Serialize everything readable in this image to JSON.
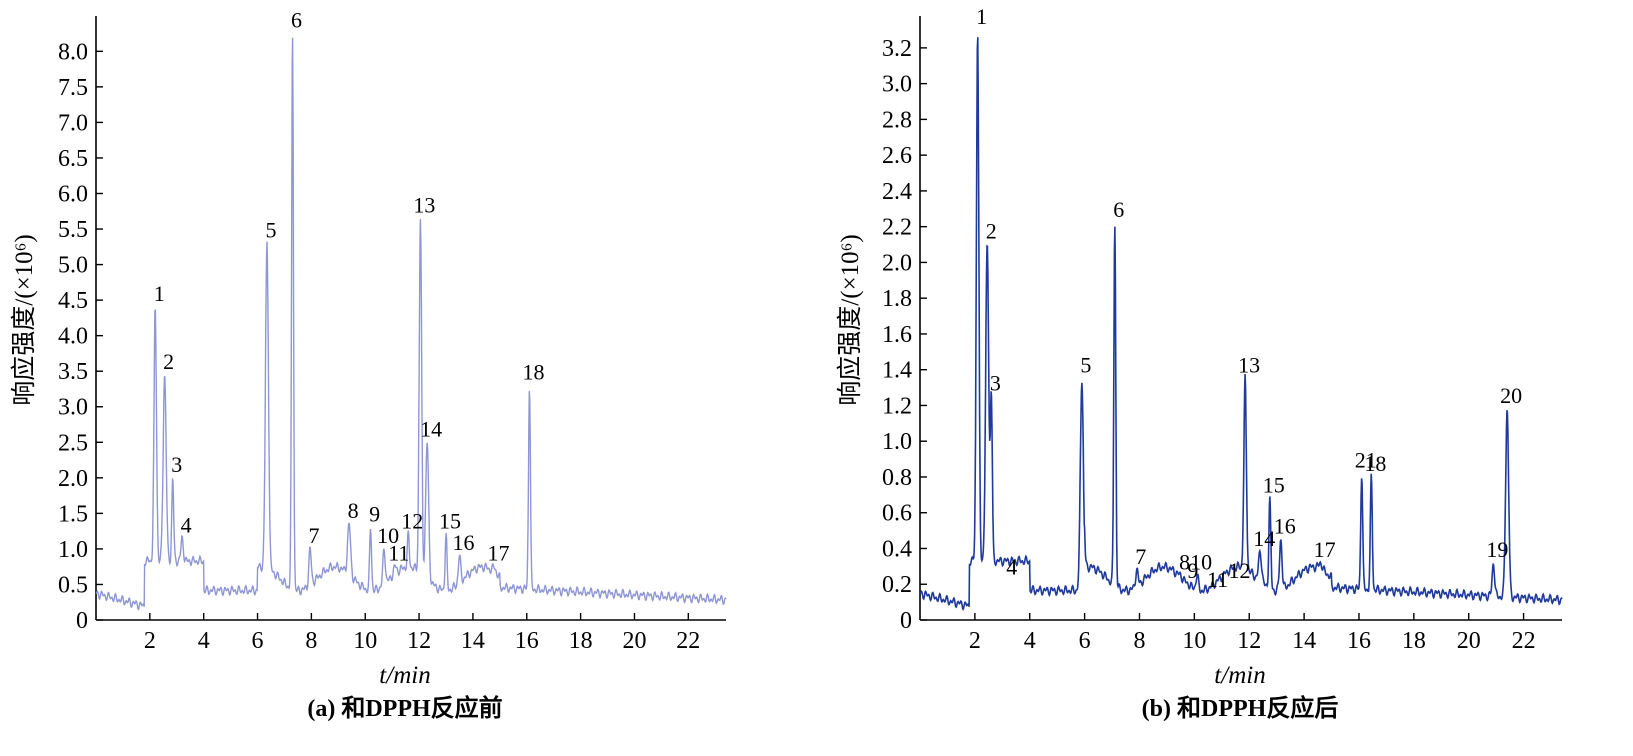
{
  "chart_data": [
    {
      "type": "line",
      "caption": "(a) 和DPPH反应前",
      "xlabel": "t/min",
      "ylabel": "响应强度/(×10⁶)",
      "xlim": [
        0,
        23.4
      ],
      "ylim": [
        0,
        8.3
      ],
      "xticks": [
        "2",
        "4",
        "6",
        "8",
        "10",
        "12",
        "14",
        "16",
        "18",
        "20",
        "22"
      ],
      "yticks": [
        "0",
        "0.5",
        "1.0",
        "1.5",
        "2.0",
        "2.5",
        "3.0",
        "3.5",
        "4.0",
        "4.5",
        "5.0",
        "5.5",
        "6.0",
        "6.5",
        "7.0",
        "7.5",
        "8.0"
      ],
      "line_color": "#8e96d4",
      "peaks": [
        {
          "label": "1",
          "x": 2.2,
          "y": 4.4
        },
        {
          "label": "2",
          "x": 2.55,
          "y": 3.45
        },
        {
          "label": "3",
          "x": 2.85,
          "y": 2.0
        },
        {
          "label": "4",
          "x": 3.2,
          "y": 1.15
        },
        {
          "label": "5",
          "x": 6.35,
          "y": 5.3
        },
        {
          "label": "6",
          "x": 7.3,
          "y": 8.25
        },
        {
          "label": "7",
          "x": 7.95,
          "y": 1.0
        },
        {
          "label": "8",
          "x": 9.4,
          "y": 1.35
        },
        {
          "label": "9",
          "x": 10.2,
          "y": 1.3
        },
        {
          "label": "10",
          "x": 10.7,
          "y": 1.0
        },
        {
          "label": "11",
          "x": 11.1,
          "y": 0.75
        },
        {
          "label": "12",
          "x": 11.6,
          "y": 1.2
        },
        {
          "label": "13",
          "x": 12.05,
          "y": 5.65
        },
        {
          "label": "14",
          "x": 12.3,
          "y": 2.5
        },
        {
          "label": "15",
          "x": 13.0,
          "y": 1.2
        },
        {
          "label": "16",
          "x": 13.5,
          "y": 0.9
        },
        {
          "label": "17",
          "x": 14.8,
          "y": 0.75
        },
        {
          "label": "18",
          "x": 16.1,
          "y": 3.3
        }
      ]
    },
    {
      "type": "line",
      "caption": "(b) 和DPPH反应后",
      "xlabel": "t/min",
      "ylabel": "响应强度/(×10⁶)",
      "xlim": [
        0,
        23.4
      ],
      "ylim": [
        0,
        3.3
      ],
      "xticks": [
        "2",
        "4",
        "6",
        "8",
        "10",
        "12",
        "14",
        "16",
        "18",
        "20",
        "22"
      ],
      "yticks": [
        "0",
        "0.2",
        "0.4",
        "0.6",
        "0.8",
        "1.0",
        "1.2",
        "1.4",
        "1.6",
        "1.8",
        "2.0",
        "2.2",
        "2.4",
        "2.6",
        "2.8",
        "3.0",
        "3.2"
      ],
      "line_color": "#1f3a9c",
      "peaks": [
        {
          "label": "1",
          "x": 2.1,
          "y": 3.3
        },
        {
          "label": "2",
          "x": 2.45,
          "y": 2.1
        },
        {
          "label": "3",
          "x": 2.6,
          "y": 1.25
        },
        {
          "label": "4",
          "x": 3.2,
          "y": 0.22
        },
        {
          "label": "5",
          "x": 5.9,
          "y": 1.35
        },
        {
          "label": "6",
          "x": 7.1,
          "y": 2.22
        },
        {
          "label": "7",
          "x": 7.9,
          "y": 0.28
        },
        {
          "label": "8",
          "x": 9.5,
          "y": 0.25
        },
        {
          "label": "9",
          "x": 9.8,
          "y": 0.2
        },
        {
          "label": "10",
          "x": 10.1,
          "y": 0.25
        },
        {
          "label": "11",
          "x": 10.7,
          "y": 0.15
        },
        {
          "label": "12",
          "x": 11.5,
          "y": 0.2
        },
        {
          "label": "13",
          "x": 11.85,
          "y": 1.35
        },
        {
          "label": "14",
          "x": 12.4,
          "y": 0.38
        },
        {
          "label": "15",
          "x": 12.75,
          "y": 0.68
        },
        {
          "label": "16",
          "x": 13.15,
          "y": 0.45
        },
        {
          "label": "17",
          "x": 14.6,
          "y": 0.32
        },
        {
          "label": "18",
          "x": 16.45,
          "y": 0.8
        },
        {
          "label": "19",
          "x": 20.9,
          "y": 0.32
        },
        {
          "label": "20",
          "x": 21.4,
          "y": 1.18
        },
        {
          "label": "21",
          "x": 16.1,
          "y": 0.82
        }
      ]
    }
  ]
}
